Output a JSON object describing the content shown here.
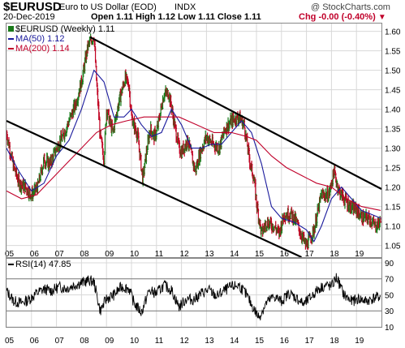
{
  "header": {
    "symbol": "$EURUSD",
    "name": "Euro to US Dollar (EOD)",
    "exchange": "INDX",
    "source": "@ StockCharts.com",
    "date": "20-Dec-2019",
    "ohlc": "Open 1.11  High 1.12  Low 1.11  Close 1.11",
    "chg": "Chg -0.00 (-0.40%)",
    "chg_icon": "triangle-down"
  },
  "legend": {
    "price": "$EURUSD (Weekly) 1.11",
    "ma50": "MA(50) 1.12",
    "ma200": "MA(200) 1.14",
    "rsi": "RSI(14) 47.85"
  },
  "colors": {
    "up": "#1a7a1a",
    "down": "#c00020",
    "ma50": "#1a1a9c",
    "ma200": "#c0002a",
    "rsi": "#000000",
    "trendline": "#000000",
    "grid": "#d8d8d8"
  },
  "chart_data": [
    {
      "type": "line",
      "title": "$EURUSD (Weekly) 1.11",
      "x_ticks": [
        "05",
        "06",
        "07",
        "08",
        "09",
        "10",
        "11",
        "12",
        "13",
        "14",
        "15",
        "16",
        "17",
        "18",
        "19"
      ],
      "x_range": [
        2005.0,
        2020.0
      ],
      "ylim": [
        1.02,
        1.62
      ],
      "y_ticks": [
        "1.05",
        "1.10",
        "1.15",
        "1.20",
        "1.25",
        "1.30",
        "1.35",
        "1.40",
        "1.45",
        "1.50",
        "1.55",
        "1.60"
      ],
      "grid": true,
      "series": [
        {
          "name": "$EURUSD (Weekly)",
          "style": "ohlc-bars",
          "x": [
            2005.0,
            2005.25,
            2005.5,
            2005.75,
            2006.0,
            2006.25,
            2006.5,
            2006.75,
            2007.0,
            2007.25,
            2007.5,
            2007.75,
            2008.0,
            2008.25,
            2008.5,
            2008.6,
            2008.75,
            2008.9,
            2009.0,
            2009.25,
            2009.5,
            2009.75,
            2009.9,
            2010.0,
            2010.25,
            2010.45,
            2010.6,
            2010.75,
            2010.9,
            2011.0,
            2011.3,
            2011.5,
            2011.75,
            2011.9,
            2012.0,
            2012.25,
            2012.55,
            2012.75,
            2013.0,
            2013.25,
            2013.5,
            2013.75,
            2014.0,
            2014.3,
            2014.5,
            2014.75,
            2014.9,
            2015.0,
            2015.2,
            2015.4,
            2015.7,
            2015.9,
            2016.1,
            2016.4,
            2016.6,
            2016.9,
            2017.0,
            2017.3,
            2017.6,
            2017.9,
            2018.1,
            2018.3,
            2018.5,
            2018.75,
            2019.0,
            2019.25,
            2019.5,
            2019.75,
            2019.97
          ],
          "values": [
            1.34,
            1.26,
            1.21,
            1.2,
            1.18,
            1.2,
            1.27,
            1.26,
            1.3,
            1.33,
            1.37,
            1.41,
            1.47,
            1.56,
            1.59,
            1.47,
            1.33,
            1.27,
            1.4,
            1.34,
            1.42,
            1.48,
            1.46,
            1.38,
            1.33,
            1.22,
            1.29,
            1.35,
            1.33,
            1.34,
            1.44,
            1.44,
            1.35,
            1.3,
            1.29,
            1.32,
            1.24,
            1.29,
            1.33,
            1.31,
            1.3,
            1.35,
            1.37,
            1.38,
            1.36,
            1.26,
            1.22,
            1.16,
            1.08,
            1.11,
            1.1,
            1.08,
            1.13,
            1.13,
            1.11,
            1.06,
            1.05,
            1.09,
            1.18,
            1.18,
            1.24,
            1.19,
            1.17,
            1.15,
            1.14,
            1.12,
            1.12,
            1.1,
            1.11
          ]
        },
        {
          "name": "MA(50)",
          "x": [
            2005.0,
            2005.5,
            2006.0,
            2006.5,
            2007.0,
            2007.5,
            2008.0,
            2008.5,
            2008.9,
            2009.3,
            2009.7,
            2010.0,
            2010.4,
            2010.8,
            2011.2,
            2011.6,
            2012.0,
            2012.4,
            2012.8,
            2013.2,
            2013.6,
            2014.0,
            2014.4,
            2014.8,
            2015.2,
            2015.6,
            2016.0,
            2016.5,
            2017.0,
            2017.3,
            2017.6,
            2018.0,
            2018.4,
            2018.8,
            2019.2,
            2019.6,
            2019.97
          ],
          "values": [
            1.3,
            1.24,
            1.19,
            1.21,
            1.28,
            1.32,
            1.4,
            1.5,
            1.47,
            1.38,
            1.38,
            1.4,
            1.36,
            1.33,
            1.34,
            1.4,
            1.36,
            1.3,
            1.3,
            1.31,
            1.31,
            1.34,
            1.37,
            1.34,
            1.26,
            1.15,
            1.12,
            1.11,
            1.09,
            1.06,
            1.1,
            1.17,
            1.2,
            1.17,
            1.14,
            1.13,
            1.12
          ]
        },
        {
          "name": "MA(200)",
          "x": [
            2005.0,
            2005.6,
            2006.2,
            2006.8,
            2007.4,
            2008.0,
            2008.6,
            2009.2,
            2009.8,
            2010.5,
            2011.2,
            2011.9,
            2012.6,
            2013.3,
            2014.0,
            2014.6,
            2015.0,
            2015.6,
            2016.2,
            2016.8,
            2017.4,
            2018.0,
            2018.6,
            2019.2,
            2019.97
          ],
          "values": [
            1.19,
            1.17,
            1.18,
            1.22,
            1.26,
            1.3,
            1.34,
            1.36,
            1.37,
            1.38,
            1.38,
            1.38,
            1.36,
            1.34,
            1.34,
            1.33,
            1.32,
            1.28,
            1.25,
            1.23,
            1.21,
            1.2,
            1.17,
            1.15,
            1.14
          ]
        }
      ],
      "trendlines": [
        {
          "x": [
            2008.35,
            2020.0
          ],
          "values": [
            1.585,
            1.195
          ]
        },
        {
          "x": [
            2005.0,
            2018.15
          ],
          "values": [
            1.37,
            0.98
          ]
        }
      ]
    },
    {
      "type": "line",
      "title": "RSI(14) 47.85",
      "x_ticks": [
        "05",
        "06",
        "07",
        "08",
        "09",
        "10",
        "11",
        "12",
        "13",
        "14",
        "15",
        "16",
        "17",
        "18",
        "19"
      ],
      "x_range": [
        2005.0,
        2020.0
      ],
      "ylim": [
        10,
        95
      ],
      "y_ticks": [
        "90",
        "70",
        "50",
        "30",
        "10"
      ],
      "reference_lines": [
        70,
        30
      ],
      "grid": true,
      "series": [
        {
          "name": "RSI(14)",
          "x": [
            2005.0,
            2005.3,
            2005.6,
            2005.9,
            2006.2,
            2006.5,
            2006.8,
            2007.1,
            2007.4,
            2007.7,
            2008.0,
            2008.3,
            2008.5,
            2008.75,
            2009.0,
            2009.3,
            2009.6,
            2009.9,
            2010.1,
            2010.4,
            2010.7,
            2011.0,
            2011.3,
            2011.6,
            2011.9,
            2012.2,
            2012.5,
            2012.8,
            2013.1,
            2013.4,
            2013.7,
            2014.0,
            2014.3,
            2014.6,
            2014.9,
            2015.1,
            2015.4,
            2015.7,
            2016.0,
            2016.3,
            2016.6,
            2016.9,
            2017.2,
            2017.5,
            2017.8,
            2018.0,
            2018.2,
            2018.5,
            2018.8,
            2019.1,
            2019.4,
            2019.7,
            2019.97
          ],
          "values": [
            55,
            42,
            40,
            44,
            52,
            57,
            55,
            60,
            58,
            62,
            65,
            68,
            66,
            30,
            45,
            50,
            60,
            58,
            40,
            28,
            55,
            52,
            62,
            56,
            35,
            45,
            44,
            52,
            56,
            48,
            55,
            60,
            62,
            50,
            32,
            22,
            40,
            48,
            42,
            52,
            46,
            38,
            48,
            58,
            62,
            60,
            72,
            50,
            42,
            45,
            42,
            46,
            48
          ]
        }
      ]
    }
  ]
}
